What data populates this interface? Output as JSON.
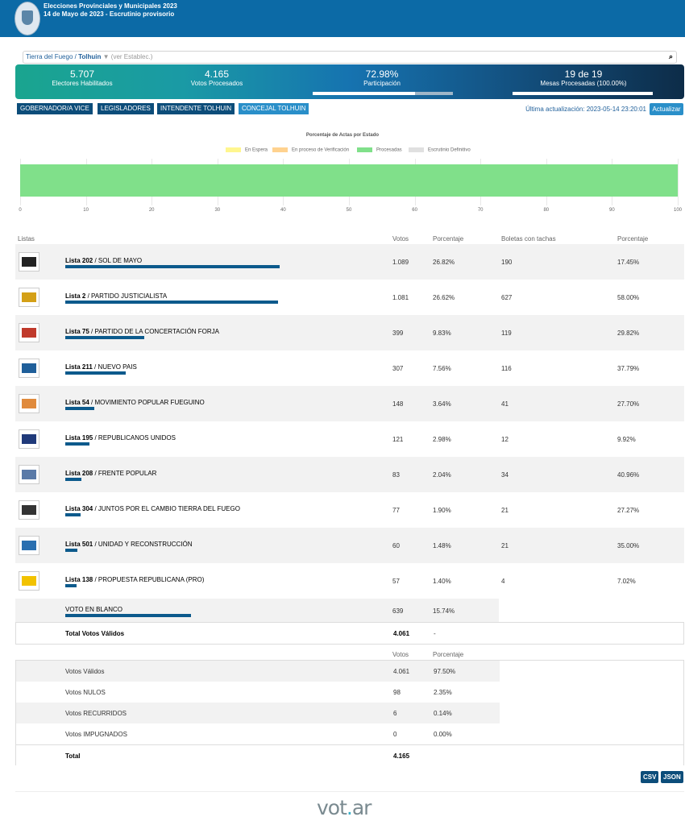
{
  "header": {
    "title": "Elecciones Provinciales y Municipales 2023",
    "subtitle": "14 de Mayo de 2023 - Escrutinio provisorio"
  },
  "search": {
    "province": "Tierra del Fuego",
    "separator": "/",
    "city": "Tolhuin",
    "caret": "▼",
    "hint": "(ver Establec.)"
  },
  "stats": {
    "electores": {
      "value": "5.707",
      "label": "Electores Habilitados"
    },
    "votos": {
      "value": "4.165",
      "label": "Votos Procesados"
    },
    "participacion": {
      "value": "72.98%",
      "label": "Participación",
      "fraction": 0.7298
    },
    "mesas": {
      "value": "19 de 19",
      "label": "Mesas Procesadas (100.00%)",
      "fraction": 1.0
    }
  },
  "tabs": [
    {
      "label": "GOBERNADOR/A VICE",
      "active": false
    },
    {
      "label": "LEGISLADORES",
      "active": false
    },
    {
      "label": "INTENDENTE TOLHUIN",
      "active": false
    },
    {
      "label": "CONCEJAL TOLHUIN",
      "active": true
    }
  ],
  "update": {
    "text": "Última actualización: 2023-05-14 23:20:01",
    "button": "Actualizar"
  },
  "chart_data": {
    "type": "bar",
    "title": "Porcentaje de Actas por Estado",
    "legend": [
      "En Espera",
      "En proceso de Verificación",
      "Procesadas",
      "Escrutinio Definitivo"
    ],
    "legend_colors": [
      "#fff68f",
      "#ffd28f",
      "#80e08a",
      "#e0e0e0"
    ],
    "series": [
      {
        "name": "En Espera",
        "values": [
          0
        ]
      },
      {
        "name": "En proceso de Verificación",
        "values": [
          0
        ]
      },
      {
        "name": "Procesadas",
        "values": [
          100
        ]
      },
      {
        "name": "Escrutinio Definitivo",
        "values": [
          0
        ]
      }
    ],
    "xlim": [
      0,
      100
    ],
    "ticks": [
      "0",
      "10",
      "20",
      "30",
      "40",
      "50",
      "60",
      "70",
      "80",
      "90",
      "100"
    ],
    "orientation": "horizontal",
    "stacked": true
  },
  "table": {
    "headers": {
      "listas": "Listas",
      "votos": "Votos",
      "porcentaje": "Porcentaje",
      "boletas": "Boletas con tachas",
      "porcentaje2": "Porcentaje"
    },
    "rows": [
      {
        "lista": "Lista 202",
        "name": "SOL DE MAYO",
        "votos": "1.089",
        "pct": "26.82%",
        "boletas": "190",
        "pct2": "17.45%",
        "share": 26.82,
        "logo": "sol-de-mayo-logo"
      },
      {
        "lista": "Lista 2",
        "name": "PARTIDO JUSTICIALISTA",
        "votos": "1.081",
        "pct": "26.62%",
        "boletas": "627",
        "pct2": "58.00%",
        "share": 26.62,
        "logo": "partido-justicialista-logo"
      },
      {
        "lista": "Lista 75",
        "name": "PARTIDO DE LA CONCERTACIÓN FORJA",
        "votos": "399",
        "pct": "9.83%",
        "boletas": "119",
        "pct2": "29.82%",
        "share": 9.83,
        "logo": "forja-logo"
      },
      {
        "lista": "Lista 211",
        "name": "NUEVO PAIS",
        "votos": "307",
        "pct": "7.56%",
        "boletas": "116",
        "pct2": "37.79%",
        "share": 7.56,
        "logo": "nuevo-pais-logo"
      },
      {
        "lista": "Lista 54",
        "name": "MOVIMIENTO POPULAR FUEGUINO",
        "votos": "148",
        "pct": "3.64%",
        "boletas": "41",
        "pct2": "27.70%",
        "share": 3.64,
        "logo": "mpf-logo"
      },
      {
        "lista": "Lista 195",
        "name": "REPUBLICANOS UNIDOS",
        "votos": "121",
        "pct": "2.98%",
        "boletas": "12",
        "pct2": "9.92%",
        "share": 2.98,
        "logo": "republicanos-unidos-logo"
      },
      {
        "lista": "Lista 208",
        "name": "FRENTE POPULAR",
        "votos": "83",
        "pct": "2.04%",
        "boletas": "34",
        "pct2": "40.96%",
        "share": 2.04,
        "logo": "frente-popular-logo"
      },
      {
        "lista": "Lista 304",
        "name": "JUNTOS POR EL CAMBIO TIERRA DEL FUEGO",
        "votos": "77",
        "pct": "1.90%",
        "boletas": "21",
        "pct2": "27.27%",
        "share": 1.9,
        "logo": "juntos-por-el-cambio-logo"
      },
      {
        "lista": "Lista 501",
        "name": "UNIDAD Y RECONSTRUCCIÓN",
        "votos": "60",
        "pct": "1.48%",
        "boletas": "21",
        "pct2": "35.00%",
        "share": 1.48,
        "logo": "unidad-reconstruccion-logo"
      },
      {
        "lista": "Lista 138",
        "name": "PROPUESTA REPUBLICANA (PRO)",
        "votos": "57",
        "pct": "1.40%",
        "boletas": "4",
        "pct2": "7.02%",
        "share": 1.4,
        "logo": "pro-logo"
      }
    ],
    "blanco": {
      "label": "VOTO EN BLANCO",
      "votos": "639",
      "pct": "15.74%",
      "share": 15.74
    },
    "total_validos": {
      "label": "Total Votos Válidos",
      "votos": "4.061",
      "pct": "-"
    }
  },
  "summary": {
    "headers": {
      "votos": "Votos",
      "porcentaje": "Porcentaje"
    },
    "rows": [
      {
        "label": "Votos Válidos",
        "votos": "4.061",
        "pct": "97.50%"
      },
      {
        "label": "Votos NULOS",
        "votos": "98",
        "pct": "2.35%"
      },
      {
        "label": "Votos RECURRIDOS",
        "votos": "6",
        "pct": "0.14%"
      },
      {
        "label": "Votos IMPUGNADOS",
        "votos": "0",
        "pct": "0.00%"
      }
    ],
    "total": {
      "label": "Total",
      "votos": "4.165"
    }
  },
  "downloads": {
    "csv": "CSV",
    "json": "JSON"
  },
  "brand": {
    "prefix": "vot",
    "dot": ".",
    "suffix": "ar"
  }
}
